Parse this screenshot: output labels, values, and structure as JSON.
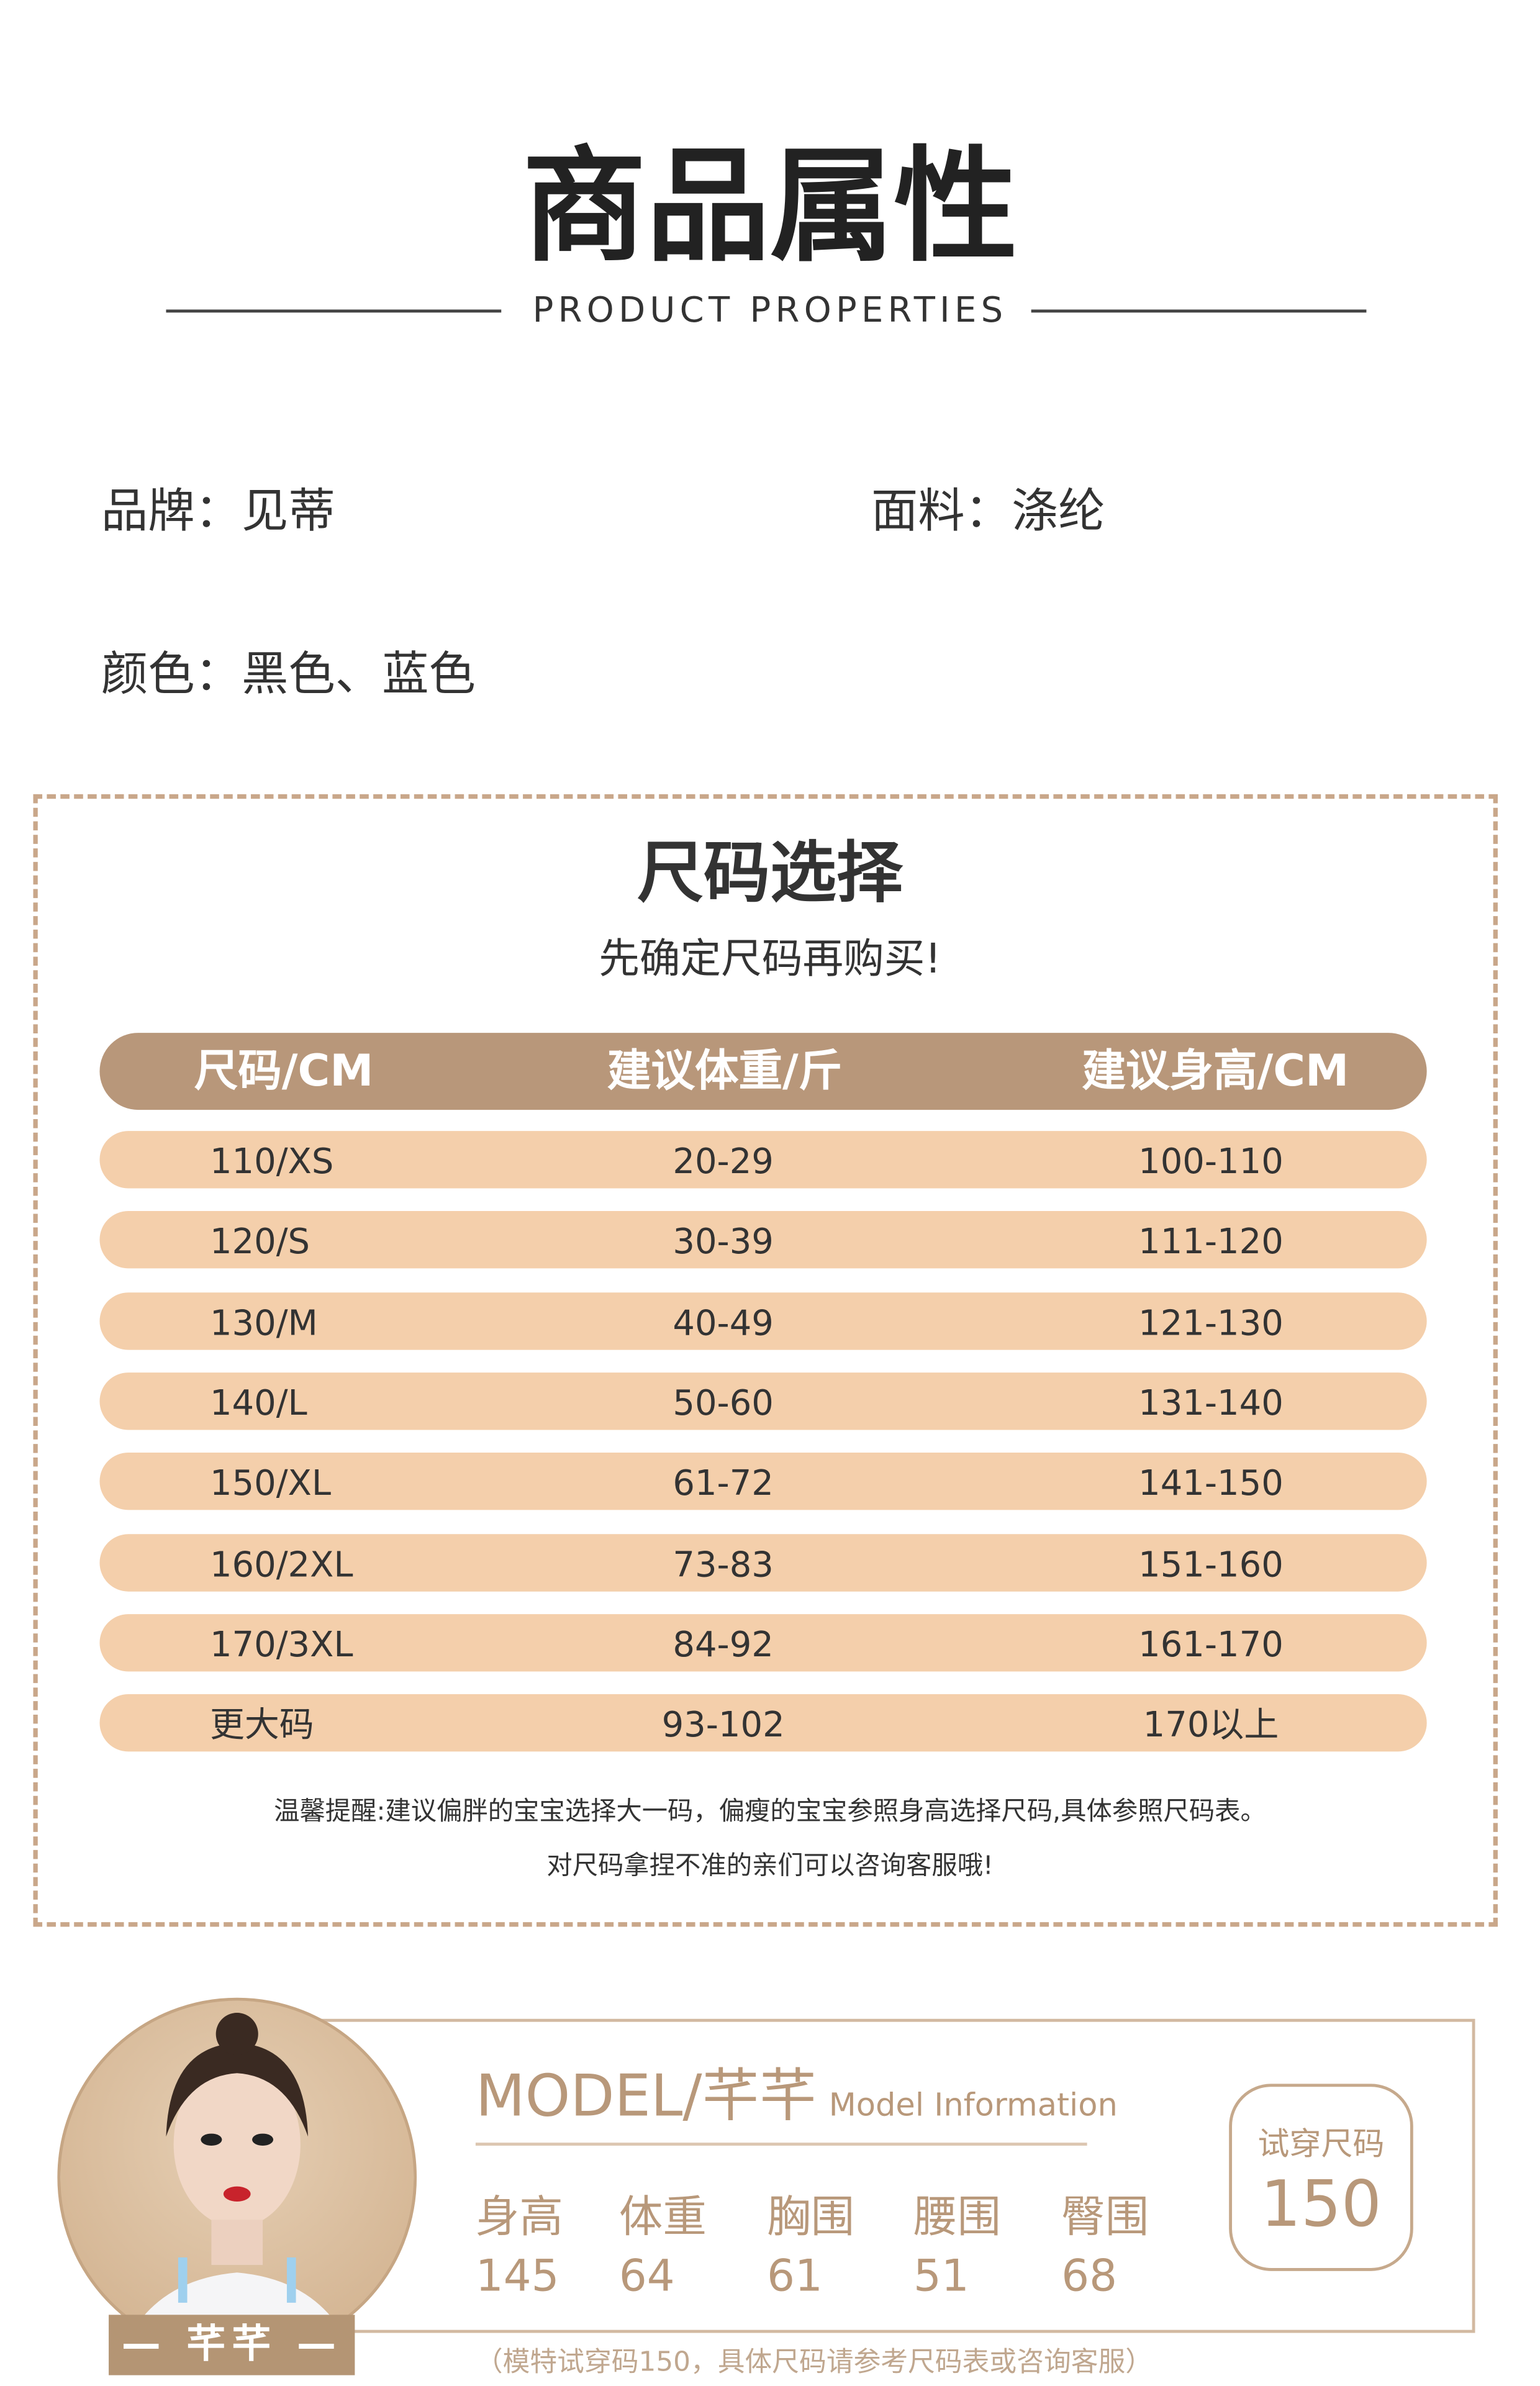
{
  "header": {
    "title": "商品属性",
    "subtitle": "PRODUCT PROPERTIES"
  },
  "properties": {
    "brand": "品牌：见蒂",
    "fabric": "面料：涤纶",
    "color": "颜色：黑色、蓝色"
  },
  "size_chart": {
    "title": "尺码选择",
    "subtitle": "先确定尺码再购买!",
    "columns": [
      "尺码/CM",
      "建议体重/斤",
      "建议身高/CM"
    ],
    "rows": [
      [
        "110/XS",
        "20-29",
        "100-110"
      ],
      [
        "120/S",
        "30-39",
        "111-120"
      ],
      [
        "130/M",
        "40-49",
        "121-130"
      ],
      [
        "140/L",
        "50-60",
        "131-140"
      ],
      [
        "150/XL",
        "61-72",
        "141-150"
      ],
      [
        "160/2XL",
        "73-83",
        "151-160"
      ],
      [
        "170/3XL",
        "84-92",
        "161-170"
      ],
      [
        "更大码",
        "93-102",
        "170以上"
      ]
    ],
    "note1": "温馨提醒:建议偏胖的宝宝选择大一码，偏瘦的宝宝参照身高选择尺码,具体参照尺码表。",
    "note2": "对尺码拿捏不准的亲们可以咨询客服哦!"
  },
  "model": {
    "title": "MODEL/芊芊",
    "title_sub": "Model Information",
    "name_tag": "— 芊芊 —",
    "stats": [
      {
        "label": "身高",
        "value": "145"
      },
      {
        "label": "体重",
        "value": "64"
      },
      {
        "label": "胸围",
        "value": "61"
      },
      {
        "label": "腰围",
        "value": "51"
      },
      {
        "label": "臀围",
        "value": "68"
      }
    ],
    "try_label": "试穿尺码",
    "try_value": "150",
    "footnote": "（模特试穿码150，具体尺码请参考尺码表或咨询客服）"
  },
  "colors": {
    "accent": "#b8977a",
    "row": "#f4cfab",
    "model_text": "#b8987a"
  }
}
